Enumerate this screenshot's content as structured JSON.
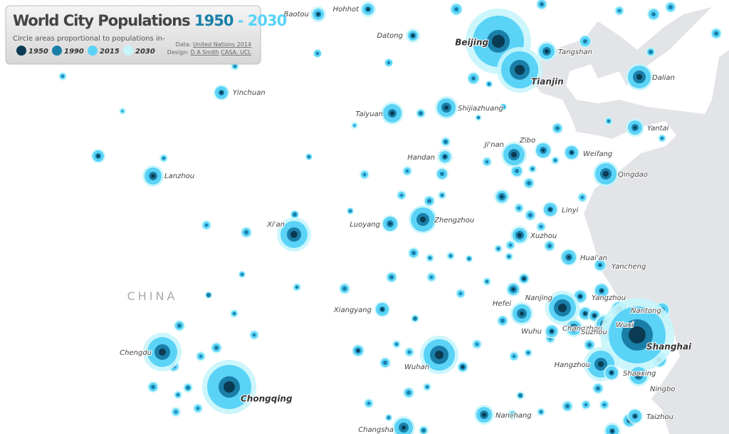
{
  "header": {
    "title": "World City Populations",
    "year_from": "1950",
    "dash": "-",
    "year_to": "2030",
    "subtitle": "Circle areas proportional to populations in-"
  },
  "legend": [
    "1950",
    "1990",
    "2015",
    "2030"
  ],
  "credits": {
    "data_label": "Data:",
    "data_source": "United Nations 2014",
    "design_label": "Design:",
    "designer": "D A Smith",
    "institution": "CASA, UCL"
  },
  "country": "CHINA",
  "cities": [
    {
      "name": "Baotou"
    },
    {
      "name": "Hohhot"
    },
    {
      "name": "Datong"
    },
    {
      "name": "Beijing"
    },
    {
      "name": "Tangshan"
    },
    {
      "name": "Tianjin"
    },
    {
      "name": "Dalian"
    },
    {
      "name": "Yinchuan"
    },
    {
      "name": "Taiyuan"
    },
    {
      "name": "Shijiazhuang"
    },
    {
      "name": "Yantai"
    },
    {
      "name": "Ji'nan"
    },
    {
      "name": "Zibo"
    },
    {
      "name": "Weifang"
    },
    {
      "name": "Handan"
    },
    {
      "name": "Lanzhou"
    },
    {
      "name": "Qingdao"
    },
    {
      "name": "Linyi"
    },
    {
      "name": "Luoyang"
    },
    {
      "name": "Zhengzhou"
    },
    {
      "name": "Xi'an"
    },
    {
      "name": "Xuzhou"
    },
    {
      "name": "Huai'an"
    },
    {
      "name": "Yancheng"
    },
    {
      "name": "Yangzhou"
    },
    {
      "name": "Nanjing"
    },
    {
      "name": "Hefei"
    },
    {
      "name": "Xiangyang"
    },
    {
      "name": "Nantong"
    },
    {
      "name": "Wuxi"
    },
    {
      "name": "Changzhou"
    },
    {
      "name": "Wuhu"
    },
    {
      "name": "Suzhou"
    },
    {
      "name": "Shanghai"
    },
    {
      "name": "Chengdu"
    },
    {
      "name": "Hangzhou"
    },
    {
      "name": "Wuhan"
    },
    {
      "name": "Shaoxing"
    },
    {
      "name": "Ningbo"
    },
    {
      "name": "Chongqing"
    },
    {
      "name": "Nanchang"
    },
    {
      "name": "Taizhou"
    },
    {
      "name": "Changsha"
    }
  ]
}
